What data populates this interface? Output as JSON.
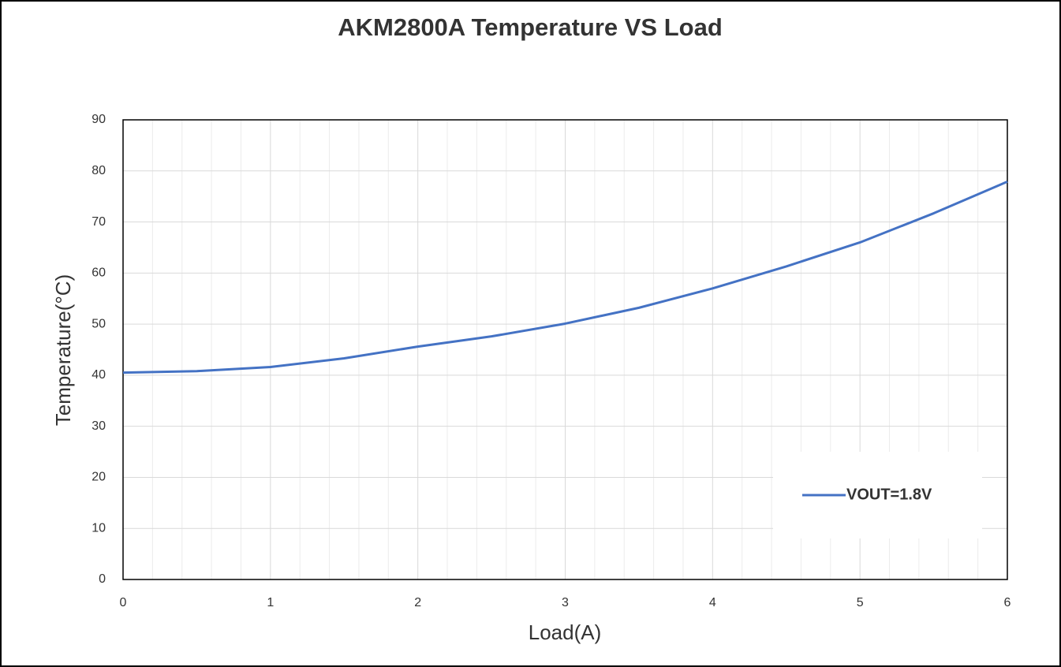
{
  "chart_data": {
    "type": "line",
    "title": "AKM2800A Temperature VS Load",
    "xlabel": "Load(A)",
    "ylabel": "Temperature(°C)",
    "x": [
      0,
      0.5,
      1,
      1.5,
      2,
      2.5,
      3,
      3.5,
      4,
      4.5,
      5,
      5.5,
      6
    ],
    "series": [
      {
        "name": "VOUT=1.8V",
        "color": "#4472c4",
        "values": [
          40.5,
          40.8,
          41.6,
          43.3,
          45.6,
          47.6,
          50.1,
          53.2,
          57,
          61.3,
          66,
          71.7,
          77.9
        ]
      }
    ],
    "xlim": [
      0,
      6
    ],
    "xticks": [
      0,
      1,
      2,
      3,
      4,
      5,
      6
    ],
    "xminor": 5,
    "ylim": [
      0,
      90
    ],
    "yticks": [
      0,
      10,
      20,
      30,
      40,
      50,
      60,
      70,
      80,
      90
    ],
    "grid": true,
    "legend": "lower right"
  }
}
